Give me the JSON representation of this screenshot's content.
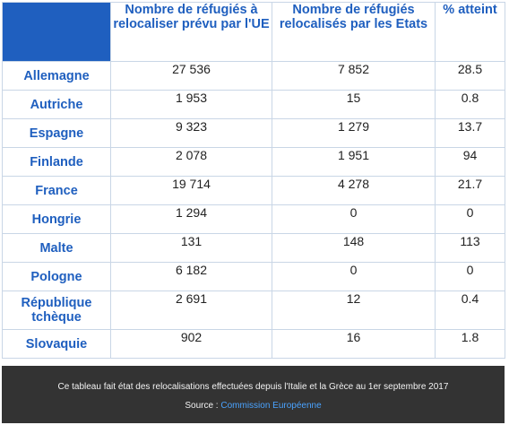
{
  "table": {
    "headers": {
      "col1": "Nombre de réfugiés à relocaliser prévu par l'UE",
      "col2": "Nombre de réfugiés relocalisés par les Etats",
      "col3": "% atteint"
    },
    "rows": [
      {
        "country": "Allemagne",
        "planned": "27 536",
        "relocated": "7 852",
        "percent": "28.5"
      },
      {
        "country": "Autriche",
        "planned": "1 953",
        "relocated": "15",
        "percent": "0.8"
      },
      {
        "country": "Espagne",
        "planned": "9 323",
        "relocated": "1 279",
        "percent": "13.7"
      },
      {
        "country": "Finlande",
        "planned": "2 078",
        "relocated": "1 951",
        "percent": "94"
      },
      {
        "country": "France",
        "planned": "19 714",
        "relocated": "4 278",
        "percent": "21.7"
      },
      {
        "country": "Hongrie",
        "planned": "1 294",
        "relocated": "0",
        "percent": "0"
      },
      {
        "country": "Malte",
        "planned": "131",
        "relocated": "148",
        "percent": "113"
      },
      {
        "country": "Pologne",
        "planned": "6 182",
        "relocated": "0",
        "percent": "0"
      },
      {
        "country": "République tchèque",
        "planned": "2 691",
        "relocated": "12",
        "percent": "0.4"
      },
      {
        "country": "Slovaquie",
        "planned": "902",
        "relocated": "16",
        "percent": "1.8"
      }
    ]
  },
  "caption": {
    "text": "Ce tableau fait état des relocalisations effectuées depuis l'Italie et la Grèce au 1er septembre 2017",
    "source_label": "Source :",
    "source_link": "Commission Européenne"
  },
  "colors": {
    "accent_blue": "#1f5fbf",
    "caption_bg": "#333333",
    "link": "#4aa3ff"
  }
}
